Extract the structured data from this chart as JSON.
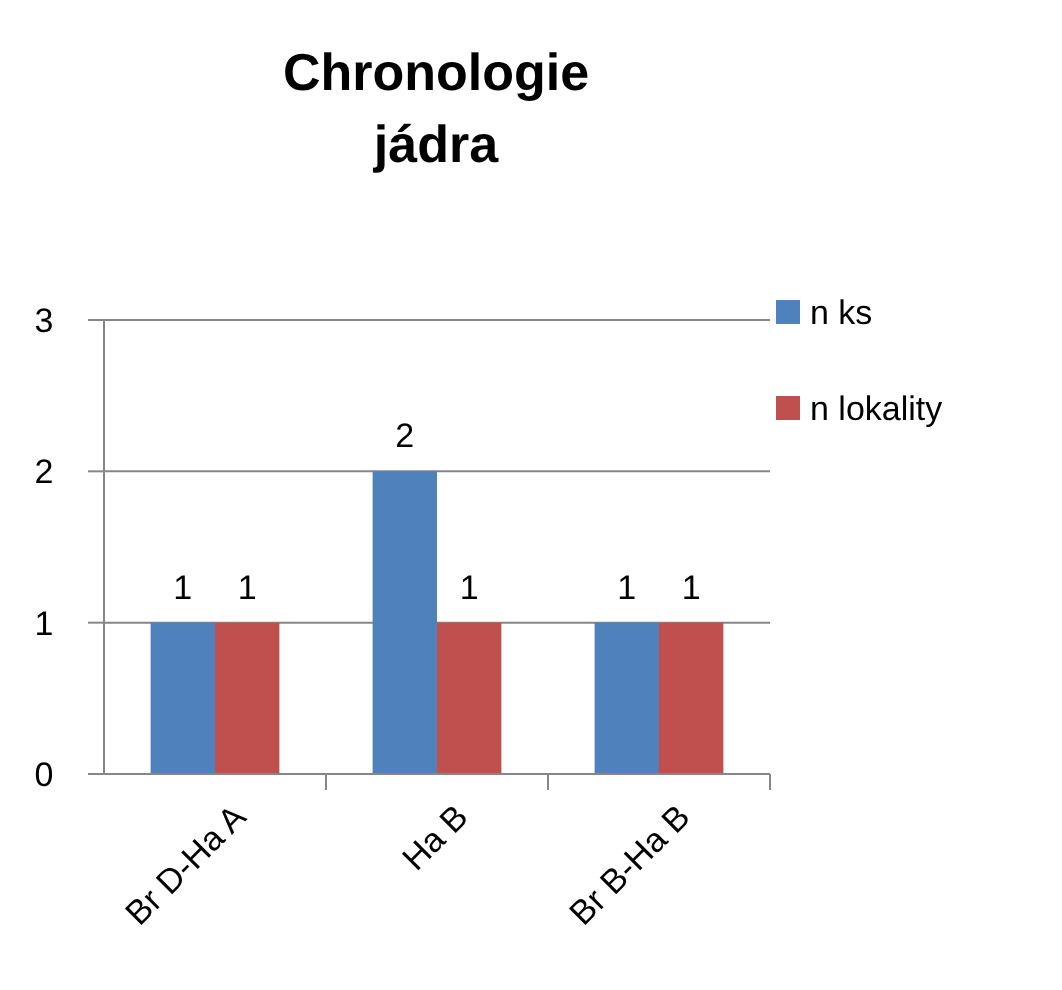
{
  "chart_data": {
    "type": "bar",
    "title": "Chronologie jádra",
    "categories": [
      "Br D-Ha A",
      "Ha B",
      "Br B-Ha B"
    ],
    "series": [
      {
        "name": "n ks",
        "color": "#4f81bd",
        "values": [
          1,
          2,
          1
        ]
      },
      {
        "name": "n lokality",
        "color": "#c0504d",
        "values": [
          1,
          1,
          1
        ]
      }
    ],
    "ylim": [
      0,
      3
    ],
    "yticks": [
      0,
      1,
      2,
      3
    ],
    "grid": "y",
    "legend": "top right",
    "data_labels": true
  }
}
